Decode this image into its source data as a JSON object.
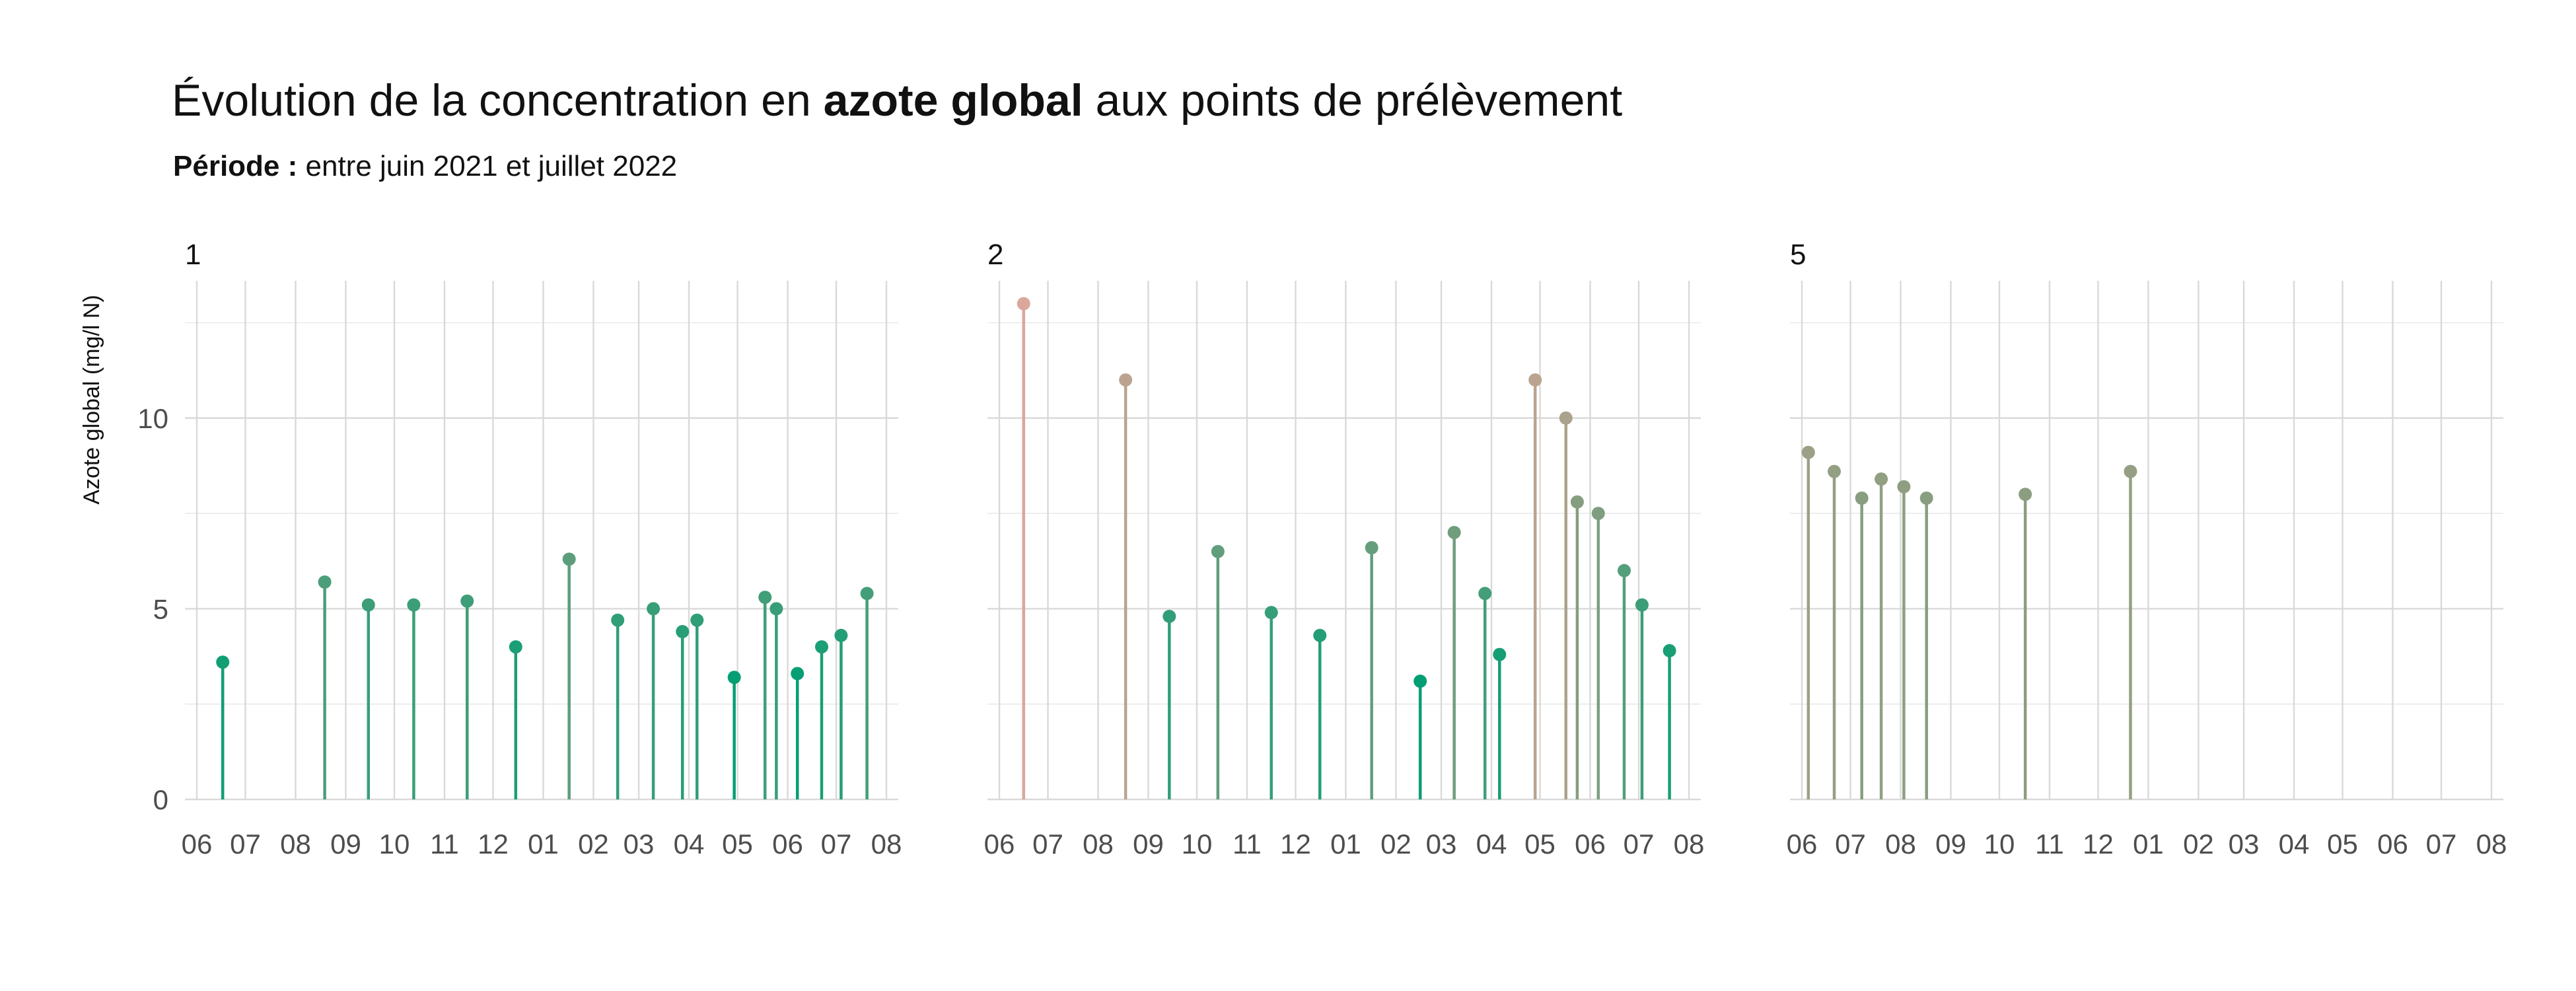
{
  "chart_data": {
    "type": "lollipop",
    "title": {
      "prefix": "Évolution de la concentration en ",
      "bold": "azote global",
      "suffix": " aux points de prélèvement"
    },
    "subtitle": {
      "bold": "Période :",
      "text": " entre juin 2021 et juillet 2022"
    },
    "ylabel": "Azote global (mg/l N)",
    "ylim": [
      0,
      13.6
    ],
    "y_ticks": [
      0,
      5,
      10
    ],
    "xlim": [
      "2021-06-01",
      "2022-08-01"
    ],
    "x_tick_labels": [
      "06",
      "07",
      "08",
      "09",
      "10",
      "11",
      "12",
      "01",
      "02",
      "03",
      "04",
      "05",
      "06",
      "07",
      "08"
    ],
    "color_scale": {
      "low": "#009E73",
      "mid": "#8C9E80",
      "high": "#D9A89B",
      "range": [
        3,
        13
      ]
    },
    "panels": [
      {
        "label": "1",
        "points": [
          {
            "x": "2021-06-17",
            "y": 3.6
          },
          {
            "x": "2021-08-19",
            "y": 5.7
          },
          {
            "x": "2021-09-15",
            "y": 5.1
          },
          {
            "x": "2021-10-13",
            "y": 5.1
          },
          {
            "x": "2021-11-15",
            "y": 5.2
          },
          {
            "x": "2021-12-15",
            "y": 4.0
          },
          {
            "x": "2022-01-17",
            "y": 6.3
          },
          {
            "x": "2022-02-16",
            "y": 4.7
          },
          {
            "x": "2022-03-10",
            "y": 5.0
          },
          {
            "x": "2022-03-28",
            "y": 4.4
          },
          {
            "x": "2022-04-06",
            "y": 4.7
          },
          {
            "x": "2022-04-29",
            "y": 3.2
          },
          {
            "x": "2022-05-18",
            "y": 5.3
          },
          {
            "x": "2022-05-25",
            "y": 5.0
          },
          {
            "x": "2022-06-07",
            "y": 3.3
          },
          {
            "x": "2022-06-22",
            "y": 4.0
          },
          {
            "x": "2022-07-04",
            "y": 4.3
          },
          {
            "x": "2022-07-20",
            "y": 5.4
          }
        ]
      },
      {
        "label": "2",
        "points": [
          {
            "x": "2021-06-16",
            "y": 13.0
          },
          {
            "x": "2021-08-18",
            "y": 11.0
          },
          {
            "x": "2021-09-14",
            "y": 4.8
          },
          {
            "x": "2021-10-14",
            "y": 6.5
          },
          {
            "x": "2021-11-16",
            "y": 4.9
          },
          {
            "x": "2021-12-16",
            "y": 4.3
          },
          {
            "x": "2022-01-17",
            "y": 6.6
          },
          {
            "x": "2022-02-16",
            "y": 3.1
          },
          {
            "x": "2022-03-09",
            "y": 7.0
          },
          {
            "x": "2022-03-28",
            "y": 5.4
          },
          {
            "x": "2022-04-06",
            "y": 3.8
          },
          {
            "x": "2022-04-28",
            "y": 11.0
          },
          {
            "x": "2022-05-17",
            "y": 10.0
          },
          {
            "x": "2022-05-24",
            "y": 7.8
          },
          {
            "x": "2022-06-06",
            "y": 7.5
          },
          {
            "x": "2022-06-22",
            "y": 6.0
          },
          {
            "x": "2022-07-03",
            "y": 5.1
          },
          {
            "x": "2022-07-20",
            "y": 3.9
          }
        ]
      },
      {
        "label": "5",
        "points": [
          {
            "x": "2021-06-05",
            "y": 9.1
          },
          {
            "x": "2021-06-21",
            "y": 8.6
          },
          {
            "x": "2021-07-08",
            "y": 7.9
          },
          {
            "x": "2021-07-20",
            "y": 8.4
          },
          {
            "x": "2021-08-03",
            "y": 8.2
          },
          {
            "x": "2021-08-17",
            "y": 7.9
          },
          {
            "x": "2021-10-17",
            "y": 8.0
          },
          {
            "x": "2021-12-21",
            "y": 8.6
          }
        ]
      }
    ]
  }
}
